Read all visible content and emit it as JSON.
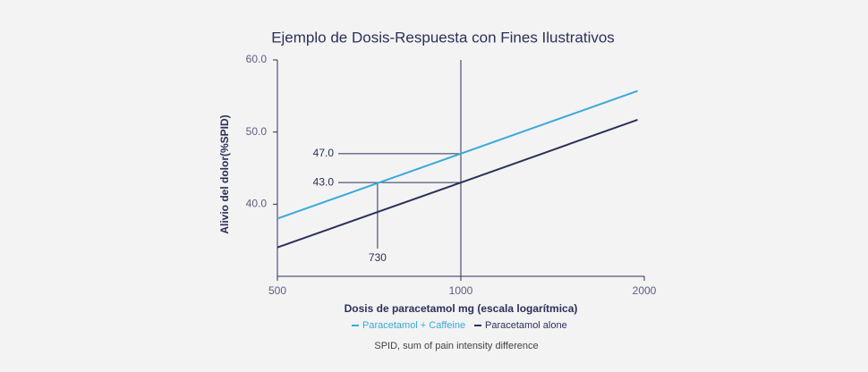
{
  "chart_data": {
    "type": "line",
    "title": "Ejemplo de Dosis-Respuesta con Fines Ilustrativos",
    "xlabel": "Dosis de paracetamol mg (escala logarítmica)",
    "ylabel": "Alivio del dolor(%SPID)",
    "x": [
      500,
      1000,
      1950
    ],
    "log_x": true,
    "xlim": [
      500,
      2000
    ],
    "xticks": [
      500,
      1000,
      2000
    ],
    "ylim": [
      30,
      60
    ],
    "yticks": [
      {
        "value": 40,
        "label": "40.0"
      },
      {
        "value": 50,
        "label": "50.0"
      },
      {
        "value": 60,
        "label": "60.0"
      }
    ],
    "series": [
      {
        "name": "Paracetamol + Caffeine",
        "color": "#3aa9d9",
        "values": [
          38,
          47,
          55.7
        ]
      },
      {
        "name": "Paracetamol alone",
        "color": "#2b3158",
        "values": [
          34,
          43,
          51.7
        ]
      }
    ],
    "hlines": [
      {
        "value": 47,
        "label": "47.0"
      },
      {
        "value": 43,
        "label": "43.0"
      }
    ],
    "vlines": [
      1000,
      730
    ],
    "footnote": "SPID, sum of pain intensity difference"
  }
}
